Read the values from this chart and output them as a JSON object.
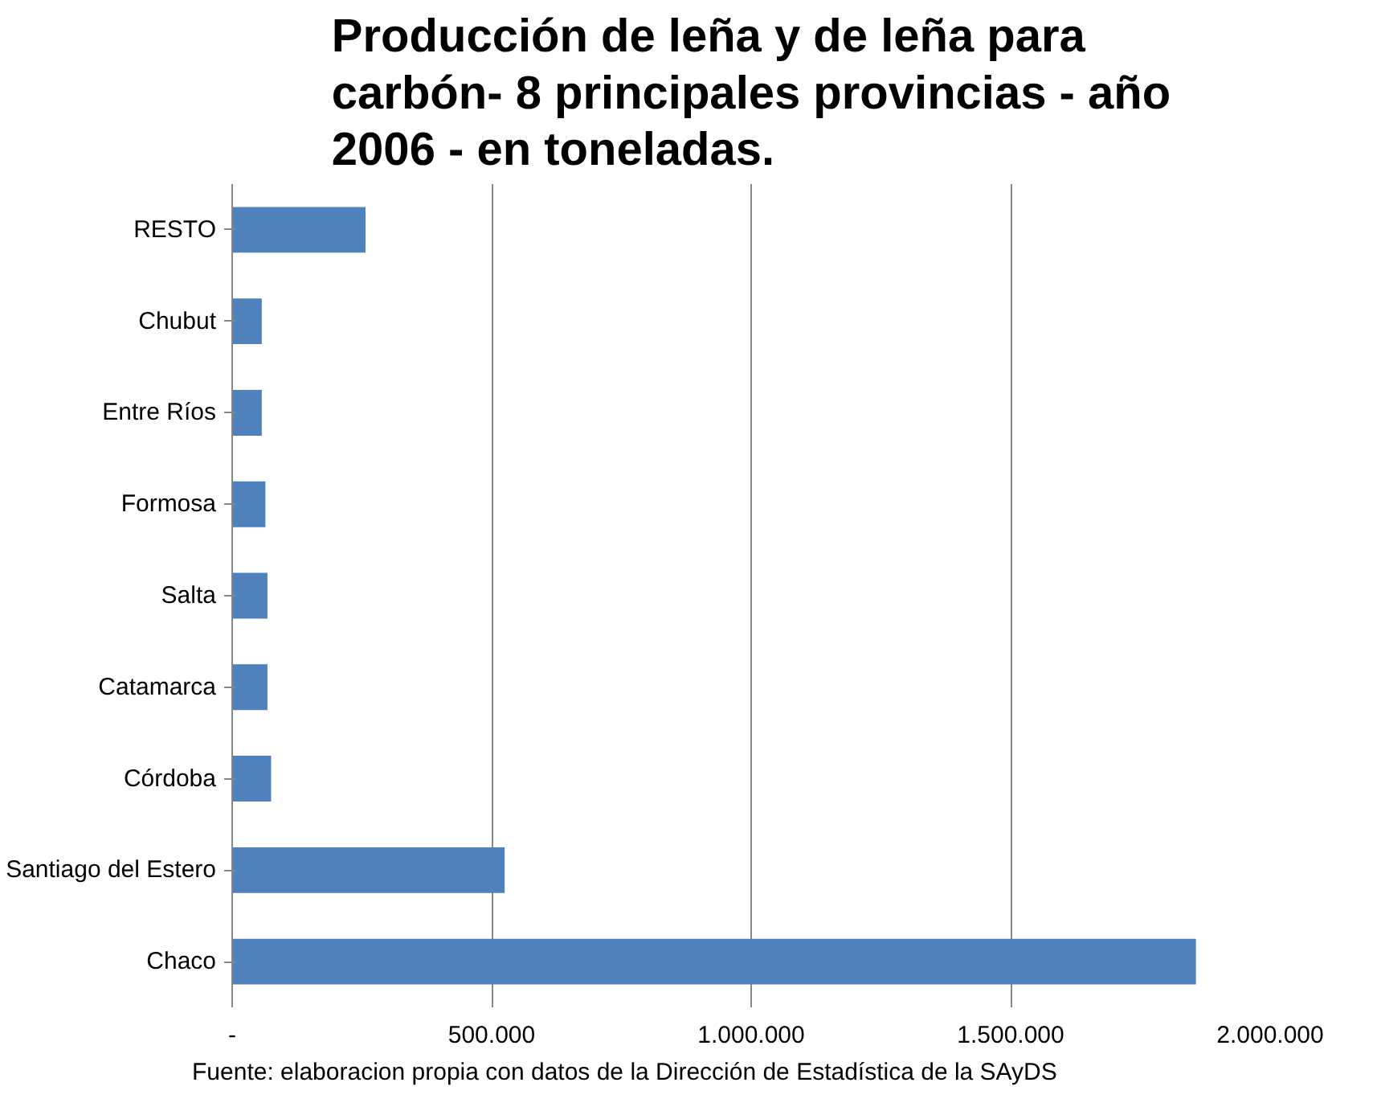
{
  "chart_data": {
    "type": "bar",
    "orientation": "horizontal",
    "title": "Producción de leña y de leña para carbón- 8 principales provincias - año 2006 - en toneladas.",
    "categories": [
      "RESTO",
      "Chubut",
      "Entre Ríos",
      "Formosa",
      "Salta",
      "Catamarca",
      "Córdoba",
      "Santiago del Estero",
      "Chaco"
    ],
    "values": [
      257000,
      57000,
      57000,
      64000,
      68000,
      68000,
      75000,
      525000,
      1857000
    ],
    "color": "#4f81bd",
    "xlim": [
      0,
      2000000
    ],
    "xticks": [
      {
        "value": 0,
        "label": "-"
      },
      {
        "value": 500000,
        "label": "500.000"
      },
      {
        "value": 1000000,
        "label": "1.000.000"
      },
      {
        "value": 1500000,
        "label": "1.500.000"
      },
      {
        "value": 2000000,
        "label": "2.000.000"
      }
    ],
    "grid": "x",
    "annotations": [
      "Fuente: elaboracion propia con datos de la Dirección de Estadística de la SAyDS"
    ]
  }
}
